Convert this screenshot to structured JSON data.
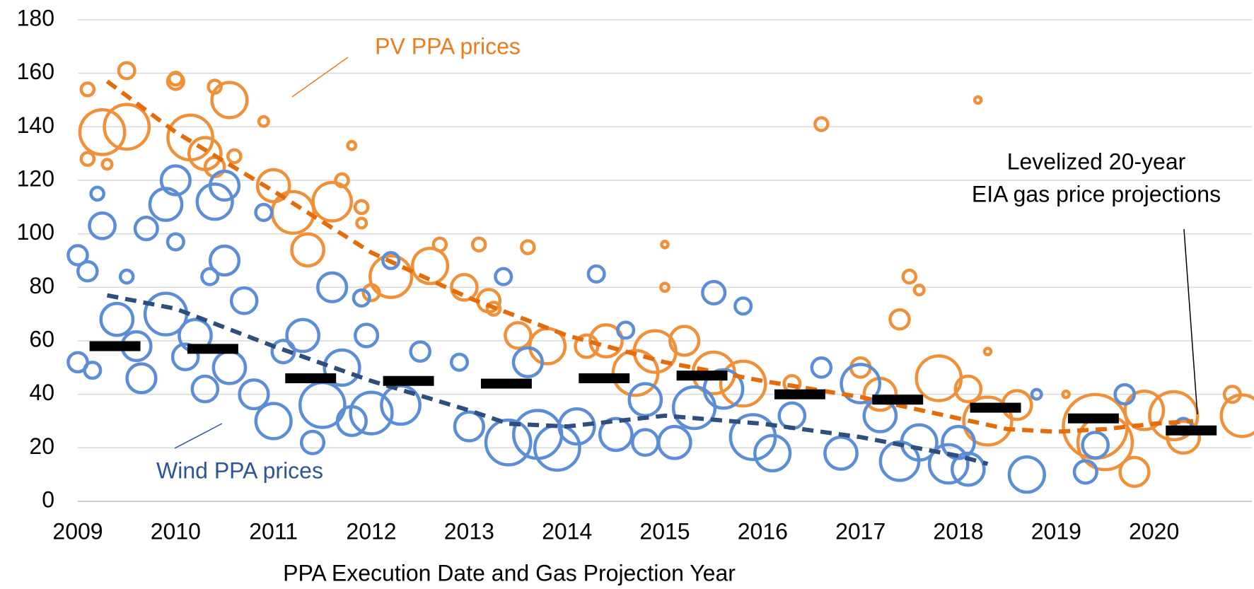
{
  "chart_data": {
    "type": "bubble",
    "x_label": "PPA Execution Date and Gas Projection Year",
    "xlim": [
      2009,
      2021
    ],
    "xticks": [
      2009,
      2010,
      2011,
      2012,
      2013,
      2014,
      2015,
      2016,
      2017,
      2018,
      2019,
      2020
    ],
    "ylim": [
      0,
      180
    ],
    "yticks": [
      0,
      20,
      40,
      60,
      80,
      100,
      120,
      140,
      160,
      180
    ],
    "grid": true,
    "series": [
      {
        "name": "PV PPA prices",
        "color": "#F0913A",
        "label_color": "#E97C1F",
        "x": [
          2009.1,
          2009.25,
          2009.5,
          2009.5,
          2009.1,
          2009.3,
          2010.0,
          2010.0,
          2010.15,
          2010.3,
          2010.4,
          2010.55,
          2010.4,
          2010.6,
          2010.9,
          2011.0,
          2011.2,
          2011.35,
          2011.6,
          2011.7,
          2011.8,
          2011.9,
          2011.9,
          2012.2,
          2012.0,
          2012.6,
          2012.7,
          2012.95,
          2013.1,
          2013.2,
          2013.25,
          2013.6,
          2013.5,
          2013.8,
          2014.2,
          2014.4,
          2014.7,
          2014.9,
          2015.0,
          2015.0,
          2015.2,
          2015.5,
          2015.8,
          2016.3,
          2016.6,
          2017.0,
          2017.2,
          2017.4,
          2017.5,
          2017.6,
          2017.8,
          2018.2,
          2018.3,
          2018.1,
          2018.3,
          2018.6,
          2019.1,
          2019.4,
          2019.5,
          2019.8,
          2019.9,
          2020.2,
          2020.3,
          2020.8,
          2020.9
        ],
        "values": [
          154,
          138,
          161,
          140,
          128,
          126,
          157,
          158,
          136,
          130,
          155,
          150,
          125,
          129,
          142,
          118,
          108,
          94,
          112,
          120,
          133,
          110,
          104,
          84,
          78,
          88,
          96,
          80,
          96,
          75,
          72,
          95,
          62,
          58,
          58,
          60,
          48,
          56,
          96,
          80,
          60,
          48,
          44,
          44,
          141,
          50,
          40,
          68,
          84,
          79,
          46,
          150,
          56,
          42,
          30,
          36,
          40,
          28,
          22,
          11,
          34,
          32,
          24,
          40,
          32
        ],
        "sizes": [
          8,
          28,
          10,
          28,
          8,
          6,
          10,
          8,
          28,
          20,
          8,
          22,
          12,
          8,
          6,
          20,
          26,
          20,
          24,
          8,
          5,
          8,
          6,
          26,
          10,
          22,
          8,
          16,
          8,
          14,
          8,
          8,
          16,
          22,
          14,
          20,
          28,
          26,
          4,
          5,
          18,
          26,
          28,
          10,
          8,
          12,
          20,
          12,
          8,
          6,
          28,
          4,
          4,
          16,
          30,
          18,
          4,
          40,
          34,
          18,
          24,
          30,
          20,
          10,
          26
        ]
      },
      {
        "name": "Wind PPA prices",
        "color": "#5B8ED6",
        "label_color": "#2E5597",
        "x": [
          2009.0,
          2009.1,
          2009.0,
          2009.15,
          2009.2,
          2009.25,
          2009.4,
          2009.5,
          2009.6,
          2009.7,
          2009.65,
          2009.9,
          2009.9,
          2010.0,
          2010.0,
          2010.1,
          2010.2,
          2010.3,
          2010.35,
          2010.4,
          2010.5,
          2010.5,
          2010.55,
          2010.7,
          2010.8,
          2010.9,
          2011.0,
          2011.1,
          2011.3,
          2011.4,
          2011.5,
          2011.6,
          2011.7,
          2011.8,
          2011.9,
          2011.95,
          2012.0,
          2012.2,
          2012.3,
          2012.5,
          2012.9,
          2013.0,
          2013.35,
          2013.4,
          2013.6,
          2013.7,
          2013.9,
          2014.1,
          2014.3,
          2014.5,
          2014.6,
          2014.8,
          2014.8,
          2015.1,
          2015.3,
          2015.5,
          2015.6,
          2015.8,
          2015.9,
          2016.1,
          2016.3,
          2016.6,
          2016.8,
          2017.0,
          2017.2,
          2017.4,
          2017.6,
          2017.9,
          2018.0,
          2018.1,
          2018.7,
          2018.8,
          2019.3,
          2019.4,
          2019.7,
          2020.3
        ],
        "values": [
          92,
          86,
          52,
          49,
          115,
          103,
          68,
          84,
          58,
          102,
          46,
          70,
          111,
          97,
          120,
          54,
          62,
          42,
          84,
          112,
          118,
          90,
          50,
          75,
          40,
          108,
          30,
          56,
          62,
          22,
          36,
          80,
          50,
          30,
          76,
          62,
          33,
          90,
          36,
          56,
          52,
          28,
          84,
          22,
          52,
          25,
          20,
          28,
          85,
          25,
          64,
          38,
          22,
          22,
          35,
          78,
          42,
          73,
          24,
          18,
          32,
          50,
          18,
          44,
          32,
          15,
          22,
          14,
          22,
          12,
          10,
          40,
          11,
          21,
          40,
          28
        ],
        "sizes": [
          12,
          12,
          12,
          10,
          8,
          16,
          20,
          8,
          18,
          14,
          18,
          26,
          20,
          10,
          18,
          16,
          20,
          16,
          10,
          22,
          18,
          18,
          20,
          16,
          18,
          10,
          22,
          14,
          20,
          14,
          28,
          18,
          22,
          18,
          10,
          14,
          26,
          10,
          24,
          12,
          10,
          18,
          10,
          28,
          18,
          30,
          28,
          22,
          10,
          20,
          10,
          20,
          16,
          20,
          26,
          14,
          24,
          10,
          28,
          22,
          16,
          12,
          20,
          24,
          20,
          24,
          22,
          24,
          20,
          20,
          22,
          6,
          14,
          16,
          12,
          10
        ]
      }
    ],
    "trendlines": [
      {
        "color": "#E46C0A",
        "x": [
          2009.3,
          2010,
          2011,
          2012,
          2013,
          2014,
          2015,
          2016,
          2017,
          2018,
          2018.5,
          2019,
          2019.5,
          2020,
          2020.4
        ],
        "values": [
          157,
          138,
          116,
          93,
          76,
          62,
          52,
          45,
          39,
          31,
          27,
          26,
          27,
          29,
          30
        ]
      },
      {
        "color": "#2E4E7E",
        "x": [
          2009.3,
          2010,
          2011,
          2012,
          2013,
          2013.4,
          2014,
          2015,
          2016,
          2017,
          2018,
          2018.3
        ],
        "values": [
          77,
          72,
          58,
          45,
          34,
          29,
          28,
          32,
          29,
          24,
          17,
          14
        ]
      }
    ],
    "gas_projections": {
      "color": "#000000",
      "annotation": [
        "Levelized 20-year",
        "EIA gas price projections"
      ],
      "x": [
        2009.38,
        2010.38,
        2011.38,
        2012.38,
        2013.38,
        2014.38,
        2015.38,
        2016.38,
        2017.38,
        2018.38,
        2019.38,
        2020.38
      ],
      "values": [
        58,
        57,
        46,
        45,
        44,
        46,
        47,
        40,
        38,
        35,
        31,
        26.5
      ]
    }
  }
}
